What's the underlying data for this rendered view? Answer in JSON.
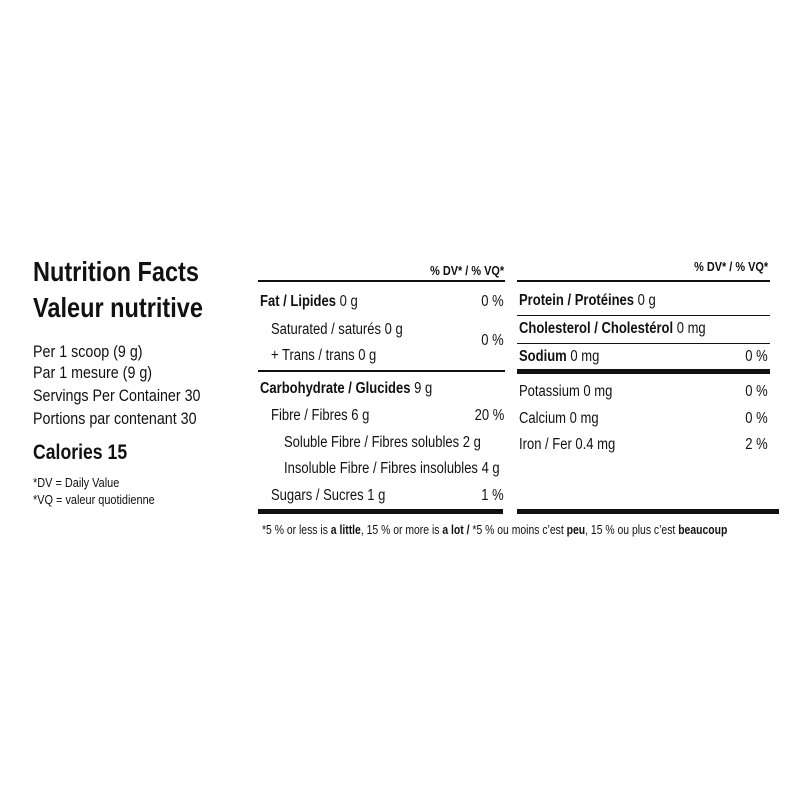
{
  "title_en": "Nutrition Facts",
  "title_fr": "Valeur nutritive",
  "serving": [
    "Per 1 scoop (9 g)",
    "Par 1 mesure (9 g)",
    "Servings Per Container 30",
    "Portions par contenant 30"
  ],
  "calories": "Calories 15",
  "dv_notes": [
    "*DV = Daily Value",
    "*VQ = valeur quotidienne"
  ],
  "dv_header": "% DV* / % VQ*",
  "left": {
    "fat": {
      "label": "Fat / Lipides",
      "amount": " 0 g",
      "dv": "0 %"
    },
    "saturated": {
      "label": "Saturated / saturés 0 g"
    },
    "trans": {
      "label": "+ Trans / trans 0 g"
    },
    "sat_trans_dv": "0 %",
    "carb": {
      "label": "Carbohydrate / Glucides",
      "amount": " 9 g"
    },
    "fibre": {
      "label": "Fibre / Fibres 6 g",
      "dv": "20 %"
    },
    "soluble": {
      "label": "Soluble Fibre / Fibres solubles 2 g"
    },
    "insoluble": {
      "label": "Insoluble Fibre / Fibres insolubles 4 g"
    },
    "sugars": {
      "label": "Sugars / Sucres 1 g",
      "dv": "1 %"
    }
  },
  "right": {
    "protein": {
      "label": "Protein / Protéines",
      "amount": " 0 g"
    },
    "cholesterol": {
      "label": "Cholesterol / Cholestérol",
      "amount": " 0 mg"
    },
    "sodium": {
      "label": "Sodium",
      "amount": " 0 mg",
      "dv": "0 %"
    },
    "potassium": {
      "label": "Potassium 0 mg",
      "dv": "0 %"
    },
    "calcium": {
      "label": "Calcium 0 mg",
      "dv": "0 %"
    },
    "iron": {
      "label": "Iron / Fer 0.4 mg",
      "dv": "2 %"
    }
  },
  "footnote": {
    "p1": "*5 % or less is ",
    "b1": "a little",
    "p2": ", 15 % or more is ",
    "b2": "a lot / ",
    "p3": "*5 % ou moins c’est ",
    "b3": "peu",
    "p4": ", 15 % ou plus c’est ",
    "b4": "beaucoup"
  }
}
